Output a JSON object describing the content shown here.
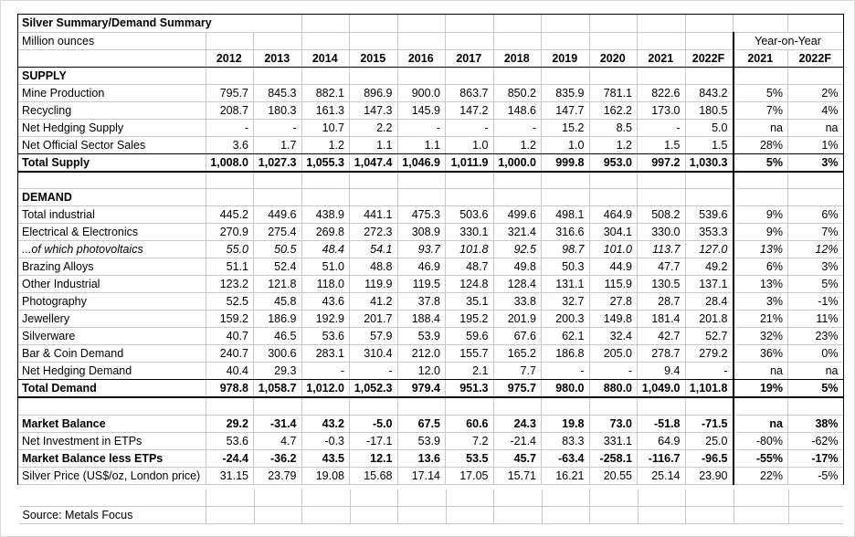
{
  "title": "Silver Summary/Demand Summary",
  "units_label": "Million ounces",
  "yoy_header": "Year-on-Year",
  "year_columns": [
    "2012",
    "2013",
    "2014",
    "2015",
    "2016",
    "2017",
    "2018",
    "2019",
    "2020",
    "2021",
    "2022F"
  ],
  "yoy_columns": [
    "2021",
    "2022F"
  ],
  "source": "Source: Metals Focus",
  "colors": {
    "text": "#000000",
    "gridline": "#c9c9c9",
    "border": "#000000",
    "background": "#ffffff"
  },
  "chart_data": {
    "type": "table",
    "title": "Silver Summary/Demand Summary",
    "units": "Million ounces",
    "categories": [
      "2012",
      "2013",
      "2014",
      "2015",
      "2016",
      "2017",
      "2018",
      "2019",
      "2020",
      "2021",
      "2022F"
    ],
    "yoy_categories": [
      "2021",
      "2022F"
    ]
  },
  "rows": [
    {
      "label": "SUPPLY",
      "style": "section",
      "values": [
        "",
        "",
        "",
        "",
        "",
        "",
        "",
        "",
        "",
        "",
        ""
      ],
      "yoy": [
        "",
        ""
      ]
    },
    {
      "label": "Mine Production",
      "style": "normal",
      "values": [
        "795.7",
        "845.3",
        "882.1",
        "896.9",
        "900.0",
        "863.7",
        "850.2",
        "835.9",
        "781.1",
        "822.6",
        "843.2"
      ],
      "yoy": [
        "5%",
        "2%"
      ]
    },
    {
      "label": "Recycling",
      "style": "normal",
      "values": [
        "208.7",
        "180.3",
        "161.3",
        "147.3",
        "145.9",
        "147.2",
        "148.6",
        "147.7",
        "162.2",
        "173.0",
        "180.5"
      ],
      "yoy": [
        "7%",
        "4%"
      ]
    },
    {
      "label": "Net Hedging Supply",
      "style": "normal",
      "values": [
        "-",
        "-",
        "10.7",
        "2.2",
        "-",
        "-",
        "-",
        "15.2",
        "8.5",
        "-",
        "5.0"
      ],
      "yoy": [
        "na",
        "na"
      ]
    },
    {
      "label": "Net Official Sector Sales",
      "style": "normal",
      "values": [
        "3.6",
        "1.7",
        "1.2",
        "1.1",
        "1.1",
        "1.0",
        "1.2",
        "1.0",
        "1.2",
        "1.5",
        "1.5"
      ],
      "yoy": [
        "28%",
        "1%"
      ]
    },
    {
      "label": "Total Supply",
      "style": "total",
      "values": [
        "1,008.0",
        "1,027.3",
        "1,055.3",
        "1,047.4",
        "1,046.9",
        "1,011.9",
        "1,000.0",
        "999.8",
        "953.0",
        "997.2",
        "1,030.3"
      ],
      "yoy": [
        "5%",
        "3%"
      ]
    },
    {
      "label": "",
      "style": "blank",
      "values": [
        "",
        "",
        "",
        "",
        "",
        "",
        "",
        "",
        "",
        "",
        ""
      ],
      "yoy": [
        "",
        ""
      ]
    },
    {
      "label": "DEMAND",
      "style": "section",
      "values": [
        "",
        "",
        "",
        "",
        "",
        "",
        "",
        "",
        "",
        "",
        ""
      ],
      "yoy": [
        "",
        ""
      ]
    },
    {
      "label": "Total industrial",
      "style": "normal",
      "values": [
        "445.2",
        "449.6",
        "438.9",
        "441.1",
        "475.3",
        "503.6",
        "499.6",
        "498.1",
        "464.9",
        "508.2",
        "539.6"
      ],
      "yoy": [
        "9%",
        "6%"
      ]
    },
    {
      "label": "Electrical & Electronics",
      "style": "normal",
      "values": [
        "270.9",
        "275.4",
        "269.8",
        "272.3",
        "308.9",
        "330.1",
        "321.4",
        "316.6",
        "304.1",
        "330.0",
        "353.3"
      ],
      "yoy": [
        "9%",
        "7%"
      ]
    },
    {
      "label": "...of which photovoltaics",
      "style": "italic",
      "values": [
        "55.0",
        "50.5",
        "48.4",
        "54.1",
        "93.7",
        "101.8",
        "92.5",
        "98.7",
        "101.0",
        "113.7",
        "127.0"
      ],
      "yoy": [
        "13%",
        "12%"
      ]
    },
    {
      "label": "Brazing Alloys",
      "style": "normal",
      "values": [
        "51.1",
        "52.4",
        "51.0",
        "48.8",
        "46.9",
        "48.7",
        "49.8",
        "50.3",
        "44.9",
        "47.7",
        "49.2"
      ],
      "yoy": [
        "6%",
        "3%"
      ]
    },
    {
      "label": "Other Industrial",
      "style": "normal",
      "values": [
        "123.2",
        "121.8",
        "118.0",
        "119.9",
        "119.5",
        "124.8",
        "128.4",
        "131.1",
        "115.9",
        "130.5",
        "137.1"
      ],
      "yoy": [
        "13%",
        "5%"
      ]
    },
    {
      "label": "Photography",
      "style": "normal",
      "values": [
        "52.5",
        "45.8",
        "43.6",
        "41.2",
        "37.8",
        "35.1",
        "33.8",
        "32.7",
        "27.8",
        "28.7",
        "28.4"
      ],
      "yoy": [
        "3%",
        "-1%"
      ]
    },
    {
      "label": "Jewellery",
      "style": "normal",
      "values": [
        "159.2",
        "186.9",
        "192.9",
        "201.7",
        "188.4",
        "195.2",
        "201.9",
        "200.3",
        "149.8",
        "181.4",
        "201.8"
      ],
      "yoy": [
        "21%",
        "11%"
      ]
    },
    {
      "label": "Silverware",
      "style": "normal",
      "values": [
        "40.7",
        "46.5",
        "53.6",
        "57.9",
        "53.9",
        "59.6",
        "67.6",
        "62.1",
        "32.4",
        "42.7",
        "52.7"
      ],
      "yoy": [
        "32%",
        "23%"
      ]
    },
    {
      "label": "Bar & Coin Demand",
      "style": "normal",
      "values": [
        "240.7",
        "300.6",
        "283.1",
        "310.4",
        "212.0",
        "155.7",
        "165.2",
        "186.8",
        "205.0",
        "278.7",
        "279.2"
      ],
      "yoy": [
        "36%",
        "0%"
      ]
    },
    {
      "label": "Net Hedging Demand",
      "style": "normal",
      "values": [
        "40.4",
        "29.3",
        "-",
        "-",
        "12.0",
        "2.1",
        "7.7",
        "-",
        "-",
        "9.4",
        "-"
      ],
      "yoy": [
        "na",
        "na"
      ]
    },
    {
      "label": "Total Demand",
      "style": "total",
      "values": [
        "978.8",
        "1,058.7",
        "1,012.0",
        "1,052.3",
        "979.4",
        "951.3",
        "975.7",
        "980.0",
        "880.0",
        "1,049.0",
        "1,101.8"
      ],
      "yoy": [
        "19%",
        "5%"
      ]
    },
    {
      "label": "",
      "style": "blank",
      "values": [
        "",
        "",
        "",
        "",
        "",
        "",
        "",
        "",
        "",
        "",
        ""
      ],
      "yoy": [
        "",
        ""
      ]
    },
    {
      "label": "Market Balance",
      "style": "bold",
      "values": [
        "29.2",
        "-31.4",
        "43.2",
        "-5.0",
        "67.5",
        "60.6",
        "24.3",
        "19.8",
        "73.0",
        "-51.8",
        "-71.5"
      ],
      "yoy": [
        "na",
        "38%"
      ]
    },
    {
      "label": "Net Investment in ETPs",
      "style": "normal",
      "values": [
        "53.6",
        "4.7",
        "-0.3",
        "-17.1",
        "53.9",
        "7.2",
        "-21.4",
        "83.3",
        "331.1",
        "64.9",
        "25.0"
      ],
      "yoy": [
        "-80%",
        "-62%"
      ]
    },
    {
      "label": "Market Balance less ETPs",
      "style": "bold",
      "values": [
        "-24.4",
        "-36.2",
        "43.5",
        "12.1",
        "13.6",
        "53.5",
        "45.7",
        "-63.4",
        "-258.1",
        "-116.7",
        "-96.5"
      ],
      "yoy": [
        "-55%",
        "-17%"
      ]
    },
    {
      "label": "Silver Price (US$/oz, London price)",
      "style": "normal",
      "values": [
        "31.15",
        "23.79",
        "19.08",
        "15.68",
        "17.14",
        "17.05",
        "15.71",
        "16.21",
        "20.55",
        "25.14",
        "23.90"
      ],
      "yoy": [
        "22%",
        "-5%"
      ]
    }
  ]
}
